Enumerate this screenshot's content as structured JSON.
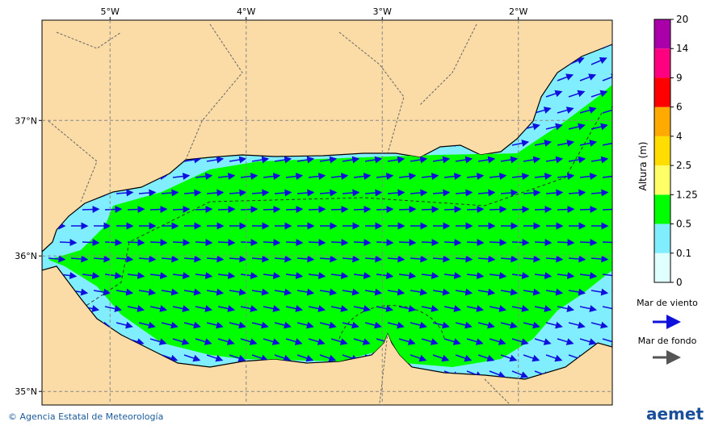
{
  "map": {
    "xlim": [
      -5.5,
      -1.31
    ],
    "ylim": [
      34.9,
      37.74
    ],
    "xticks": [
      {
        "value": -5,
        "label": "5°W"
      },
      {
        "value": -4,
        "label": "4°W"
      },
      {
        "value": -3,
        "label": "3°W"
      },
      {
        "value": -2,
        "label": "2°W"
      }
    ],
    "yticks": [
      {
        "value": 37,
        "label": "37°N"
      },
      {
        "value": 36,
        "label": "36°N"
      },
      {
        "value": 35,
        "label": "35°N"
      }
    ],
    "grid": true
  },
  "colorbar": {
    "title": "Altura (m)",
    "levels": [
      0,
      0.1,
      0.5,
      1.25,
      2.5,
      4,
      6,
      9,
      14,
      20
    ],
    "colors": [
      "#e0ffff",
      "#80eeff",
      "#00ff00",
      "#ffff66",
      "#ffdd00",
      "#ffaa00",
      "#ff0000",
      "#ff0080",
      "#aa00aa"
    ]
  },
  "legend": {
    "wind_sea": "Mar de viento",
    "swell": "Mar de fondo"
  },
  "footer": {
    "credit": "© Agencia Estatal de Meteorología",
    "logo": "aemet"
  }
}
